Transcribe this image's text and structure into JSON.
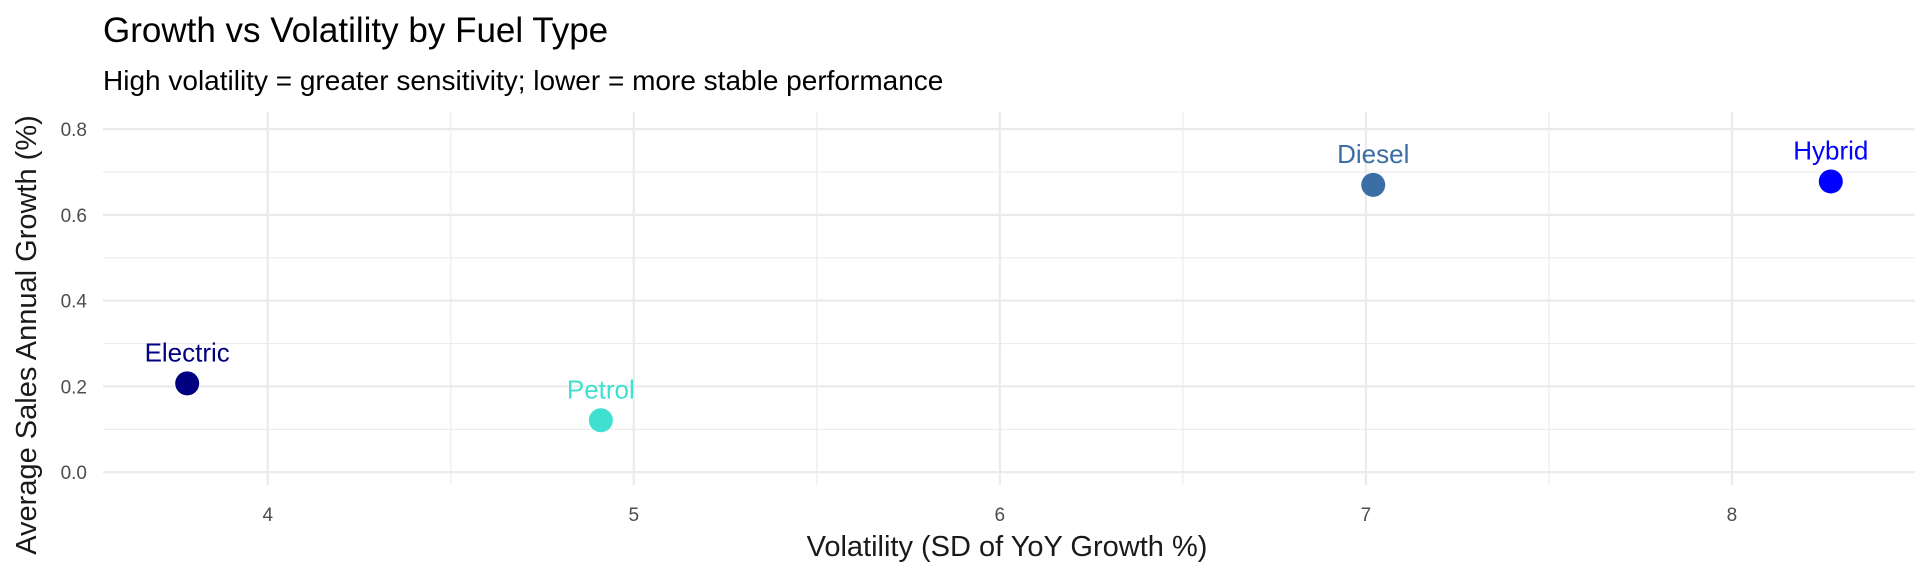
{
  "chart_data": {
    "type": "scatter",
    "title": "Growth vs Volatility by Fuel Type",
    "subtitle": "High volatility = greater sensitivity; lower = more stable performance",
    "xlabel": "Volatility (SD of YoY Growth %)",
    "ylabel": "Average Sales Annual Growth (%)",
    "xlim": [
      3.55,
      8.5
    ],
    "ylim": [
      -0.03,
      0.84
    ],
    "x_ticks": [
      {
        "value": 4,
        "label": "4"
      },
      {
        "value": 5,
        "label": "5"
      },
      {
        "value": 6,
        "label": "6"
      },
      {
        "value": 7,
        "label": "7"
      },
      {
        "value": 8,
        "label": "8"
      }
    ],
    "x_minor_ticks": [
      4.5,
      5.5,
      6.5,
      7.5
    ],
    "y_ticks": [
      {
        "value": 0.0,
        "label": "0.0"
      },
      {
        "value": 0.2,
        "label": "0.2"
      },
      {
        "value": 0.4,
        "label": "0.4"
      },
      {
        "value": 0.6,
        "label": "0.6"
      },
      {
        "value": 0.8,
        "label": "0.8"
      }
    ],
    "y_minor_ticks": [
      0.1,
      0.3,
      0.5,
      0.7
    ],
    "grid": true,
    "legend": "none",
    "points": [
      {
        "label": "Electric",
        "x": 3.78,
        "y": 0.207,
        "color": "#000080"
      },
      {
        "label": "Petrol",
        "x": 4.91,
        "y": 0.121,
        "color": "#40E0D0"
      },
      {
        "label": "Diesel",
        "x": 7.02,
        "y": 0.67,
        "color": "#3A6EA5"
      },
      {
        "label": "Hybrid",
        "x": 8.27,
        "y": 0.678,
        "color": "#0000FF"
      }
    ]
  }
}
